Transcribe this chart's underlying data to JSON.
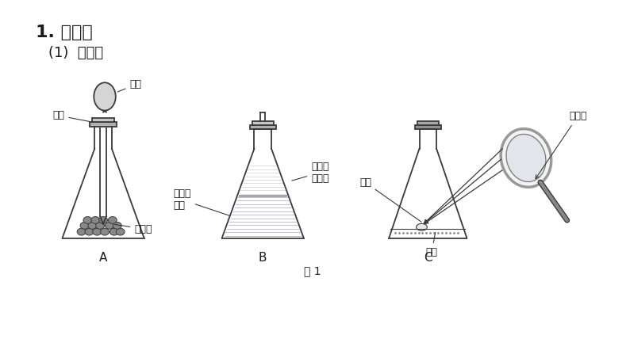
{
  "title1": "1. 实验究",
  "title2": "(1)  实验置",
  "fig_caption": "图 1",
  "label_A": "A",
  "label_B": "B",
  "label_C": "C",
  "label_qiqiu": "气球",
  "label_suanye": "盐酸",
  "label_dalishi": "大理石",
  "label_liusuantong": "硫酸铜\n溶液",
  "label_qingyang": "氢氧化\n钠溶液",
  "label_bailin": "白磷",
  "label_xisha": "细沙",
  "label_fangdajing": "放大镜",
  "bg_color": "#ffffff",
  "line_color": "#3a3a3a",
  "text_color": "#1a1a1a"
}
